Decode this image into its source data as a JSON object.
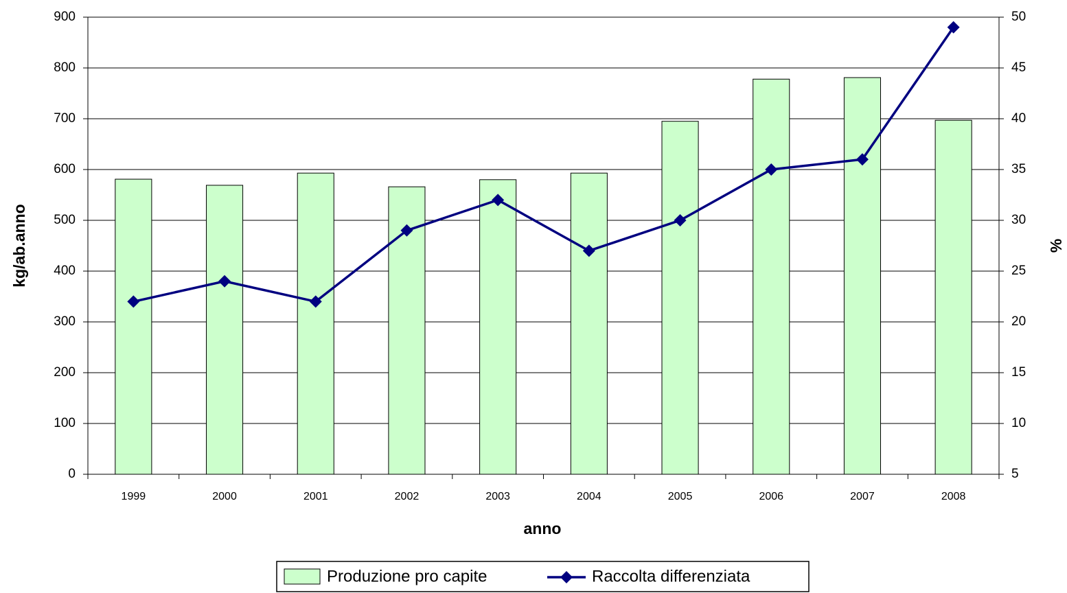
{
  "chart_data": {
    "type": "bar_line",
    "categories": [
      "1999",
      "2000",
      "2001",
      "2002",
      "2003",
      "2004",
      "2005",
      "2006",
      "2007",
      "2008"
    ],
    "x_label": "anno",
    "y_label": "kg/ab.anno",
    "y2_label": "%",
    "series": [
      {
        "name": "Produzione pro capite",
        "type": "bar",
        "color": "#ccffcc",
        "values": [
          581,
          569,
          593,
          566,
          580,
          593,
          695,
          778,
          781,
          697
        ]
      },
      {
        "name": "Raccolta differenziata",
        "type": "line",
        "axis": "y2",
        "color": "#000080",
        "values": [
          22,
          24,
          22,
          29,
          32,
          27,
          30,
          35,
          36,
          49
        ]
      }
    ],
    "ylim": [
      0,
      900
    ],
    "yticks": [
      0,
      100,
      200,
      300,
      400,
      500,
      600,
      700,
      800,
      900
    ],
    "y2lim": [
      5,
      50
    ],
    "y2ticks": [
      5,
      10,
      15,
      20,
      25,
      30,
      35,
      40,
      45,
      50
    ],
    "grid": true,
    "legend": "bottom"
  }
}
